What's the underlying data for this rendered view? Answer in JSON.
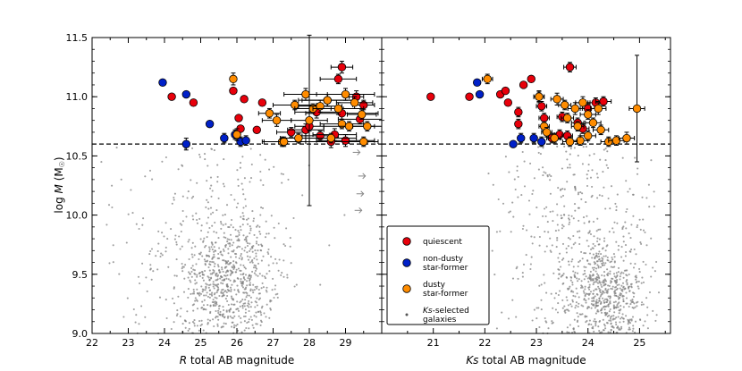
{
  "chart_data": [
    {
      "type": "scatter",
      "panel": "left",
      "xlabel_italic": "R",
      "xlabel": " total AB magnitude",
      "ylabel_prefix": "log ",
      "ylabel_italic": "M",
      "ylabel_suffix": " (M",
      "ylabel_sun": "☉",
      "ylabel_close": ")",
      "xlim": [
        22,
        30
      ],
      "ylim": [
        9.0,
        11.5
      ],
      "xticks": [
        "22",
        "23",
        "24",
        "25",
        "26",
        "27",
        "28",
        "29"
      ],
      "yticks": [
        "9.0",
        "9.5",
        "10.0",
        "10.5",
        "11.0",
        "11.5"
      ],
      "threshold": 10.6,
      "series": [
        {
          "name": "quiescent",
          "color": "#e8000b",
          "points": [
            [
              24.2,
              11.0
            ],
            [
              24.8,
              10.95
            ],
            [
              25.9,
              11.05
            ],
            [
              26.2,
              10.98
            ],
            [
              26.05,
              10.82
            ],
            [
              26.1,
              10.73
            ],
            [
              26.7,
              10.95
            ],
            [
              26.55,
              10.72
            ],
            [
              27.5,
              10.7
            ],
            [
              27.9,
              10.72
            ],
            [
              28.3,
              10.67
            ],
            [
              28.7,
              10.68
            ],
            [
              28.9,
              11.25
            ],
            [
              28.8,
              11.15
            ],
            [
              28.5,
              10.97
            ],
            [
              28.9,
              10.86
            ],
            [
              29.3,
              11.0
            ],
            [
              29.5,
              10.93
            ],
            [
              28.2,
              10.87
            ],
            [
              28.0,
              10.75
            ],
            [
              29.0,
              10.63
            ],
            [
              29.4,
              10.81
            ],
            [
              28.6,
              10.62
            ]
          ],
          "xerr": [
            0,
            0,
            0,
            0,
            0,
            0,
            0,
            0,
            0.4,
            0.5,
            0.5,
            0.6,
            0.3,
            0.5,
            0.8,
            1.0,
            0.2,
            0.3,
            0.6,
            0.4,
            0.8,
            0.6,
            0.9
          ],
          "yerr": [
            0,
            0,
            0,
            0,
            0,
            0,
            0,
            0,
            0.04,
            0.05,
            0.04,
            0.05,
            0.05,
            0.04,
            0.05,
            0.05,
            0.05,
            0.04,
            0.05,
            0.04,
            0.05,
            0.04,
            0.05
          ]
        },
        {
          "name": "non-dusty star-former",
          "color": "#0020c8",
          "points": [
            [
              23.95,
              11.12
            ],
            [
              24.6,
              11.02
            ],
            [
              25.25,
              10.77
            ],
            [
              24.6,
              10.6
            ],
            [
              25.65,
              10.65
            ],
            [
              25.95,
              10.68
            ],
            [
              26.1,
              10.62
            ],
            [
              26.25,
              10.63
            ]
          ],
          "xerr": [
            0,
            0,
            0,
            0,
            0,
            0,
            0,
            0
          ],
          "yerr": [
            0,
            0,
            0,
            0.05,
            0.04,
            0.04,
            0.04,
            0.04
          ]
        },
        {
          "name": "dusty star-former",
          "color": "#ff8c00",
          "points": [
            [
              25.9,
              11.15
            ],
            [
              26.0,
              10.68
            ],
            [
              26.9,
              10.86
            ],
            [
              27.1,
              10.8
            ],
            [
              27.25,
              10.62
            ],
            [
              27.6,
              10.93
            ],
            [
              27.9,
              11.02
            ],
            [
              28.1,
              10.9
            ],
            [
              28.3,
              10.92
            ],
            [
              28.5,
              10.97
            ],
            [
              28.6,
              10.65
            ],
            [
              28.8,
              10.9
            ],
            [
              28.9,
              10.77
            ],
            [
              29.0,
              11.02
            ],
            [
              29.1,
              10.75
            ],
            [
              29.25,
              10.95
            ],
            [
              29.5,
              10.62
            ],
            [
              29.45,
              10.85
            ],
            [
              27.3,
              10.62
            ],
            [
              28.0,
              10.8
            ],
            [
              27.7,
              10.65
            ],
            [
              29.6,
              10.75
            ]
          ],
          "xerr": [
            0,
            0,
            0.3,
            0.4,
            0.5,
            0.6,
            0.6,
            0.5,
            0.6,
            0.7,
            0.7,
            0.7,
            0.6,
            0.8,
            0.7,
            0.5,
            0.4,
            0.4,
            0.6,
            0.5,
            0.5,
            0.4
          ],
          "yerr": [
            0.05,
            0.05,
            0.04,
            0.05,
            0.04,
            0.04,
            0.05,
            0.04,
            0.05,
            0.05,
            0.04,
            0.05,
            0.04,
            0.05,
            0.04,
            0.05,
            0.04,
            0.04,
            0.04,
            0.72,
            0.04,
            0.04
          ]
        }
      ],
      "arrows": [
        [
          29.3,
          10.53
        ],
        [
          29.45,
          10.33
        ],
        [
          29.4,
          10.18
        ],
        [
          29.35,
          10.04
        ],
        [
          29.6,
          10.75
        ],
        [
          29.55,
          10.62
        ]
      ]
    },
    {
      "type": "scatter",
      "panel": "right",
      "xlabel_italic": "Ks",
      "xlabel": " total AB magnitude",
      "xlim": [
        20,
        25.6
      ],
      "ylim": [
        9.0,
        11.5
      ],
      "xticks": [
        "21",
        "22",
        "23",
        "24",
        "25"
      ],
      "threshold": 10.6,
      "series": [
        {
          "name": "quiescent",
          "color": "#e8000b",
          "points": [
            [
              20.95,
              11.0
            ],
            [
              21.7,
              11.0
            ],
            [
              22.3,
              11.02
            ],
            [
              22.4,
              11.05
            ],
            [
              22.45,
              10.95
            ],
            [
              22.65,
              10.87
            ],
            [
              22.65,
              10.77
            ],
            [
              22.75,
              11.1
            ],
            [
              22.9,
              11.15
            ],
            [
              23.05,
              11.0
            ],
            [
              23.1,
              10.92
            ],
            [
              23.15,
              10.82
            ],
            [
              23.3,
              10.65
            ],
            [
              23.45,
              10.68
            ],
            [
              23.6,
              10.67
            ],
            [
              23.65,
              11.25
            ],
            [
              23.5,
              10.83
            ],
            [
              23.8,
              10.78
            ],
            [
              23.9,
              10.73
            ],
            [
              24.0,
              10.9
            ],
            [
              24.15,
              10.95
            ],
            [
              24.3,
              10.96
            ]
          ],
          "xerr": [
            0,
            0,
            0,
            0,
            0,
            0,
            0,
            0,
            0,
            0.1,
            0.1,
            0.1,
            0.1,
            0.1,
            0.1,
            0.12,
            0.1,
            0.12,
            0.12,
            0.15,
            0.15,
            0.15
          ],
          "yerr": [
            0,
            0,
            0,
            0,
            0,
            0.04,
            0.04,
            0,
            0,
            0.04,
            0.04,
            0.04,
            0.04,
            0.04,
            0.04,
            0.04,
            0.04,
            0.04,
            0.04,
            0.04,
            0.04,
            0.04
          ]
        },
        {
          "name": "non-dusty star-former",
          "color": "#0020c8",
          "points": [
            [
              21.85,
              11.12
            ],
            [
              21.9,
              11.02
            ],
            [
              22.55,
              10.6
            ],
            [
              22.7,
              10.65
            ],
            [
              22.95,
              10.65
            ],
            [
              23.1,
              10.62
            ]
          ],
          "xerr": [
            0,
            0,
            0,
            0,
            0,
            0
          ],
          "yerr": [
            0,
            0,
            0,
            0.04,
            0.04,
            0.04
          ]
        },
        {
          "name": "dusty star-former",
          "color": "#ff8c00",
          "points": [
            [
              22.05,
              11.15
            ],
            [
              23.05,
              11.0
            ],
            [
              23.15,
              10.75
            ],
            [
              23.2,
              10.7
            ],
            [
              23.4,
              10.98
            ],
            [
              23.55,
              10.93
            ],
            [
              23.6,
              10.82
            ],
            [
              23.75,
              10.9
            ],
            [
              23.8,
              10.75
            ],
            [
              23.85,
              10.63
            ],
            [
              23.9,
              10.95
            ],
            [
              24.0,
              10.67
            ],
            [
              24.1,
              10.78
            ],
            [
              24.2,
              10.9
            ],
            [
              24.4,
              10.62
            ],
            [
              24.55,
              10.63
            ],
            [
              24.75,
              10.65
            ],
            [
              24.95,
              10.9
            ],
            [
              23.35,
              10.65
            ],
            [
              24.0,
              10.85
            ],
            [
              24.25,
              10.72
            ],
            [
              23.65,
              10.62
            ]
          ],
          "xerr": [
            0.1,
            0.1,
            0.1,
            0.1,
            0.12,
            0.12,
            0.12,
            0.14,
            0.12,
            0.15,
            0.14,
            0.15,
            0.15,
            0.15,
            0.15,
            0.15,
            0.15,
            0.15,
            0.12,
            0.15,
            0.15,
            0.14
          ],
          "yerr": [
            0.04,
            0.05,
            0.04,
            0.04,
            0.05,
            0.04,
            0.04,
            0.05,
            0.04,
            0.04,
            0.05,
            0.04,
            0.04,
            0.05,
            0.04,
            0.04,
            0.05,
            0.45,
            0.04,
            0.04,
            0.04,
            0.04
          ]
        }
      ]
    }
  ],
  "legend": {
    "entries": [
      {
        "lines": [
          "quiescent"
        ],
        "color": "#e8000b",
        "marker": "circle"
      },
      {
        "lines": [
          "non-dusty",
          "star-former"
        ],
        "color": "#0020c8",
        "marker": "circle"
      },
      {
        "lines": [
          "dusty",
          "star-former"
        ],
        "color": "#ff8c00",
        "marker": "circle"
      },
      {
        "lines": [
          "-selected",
          "galaxies"
        ],
        "italic_prefix": "Ks",
        "color": "#555555",
        "marker": "dot"
      }
    ]
  },
  "background": {
    "name": "Ks-selected galaxies",
    "color": "#808080"
  }
}
